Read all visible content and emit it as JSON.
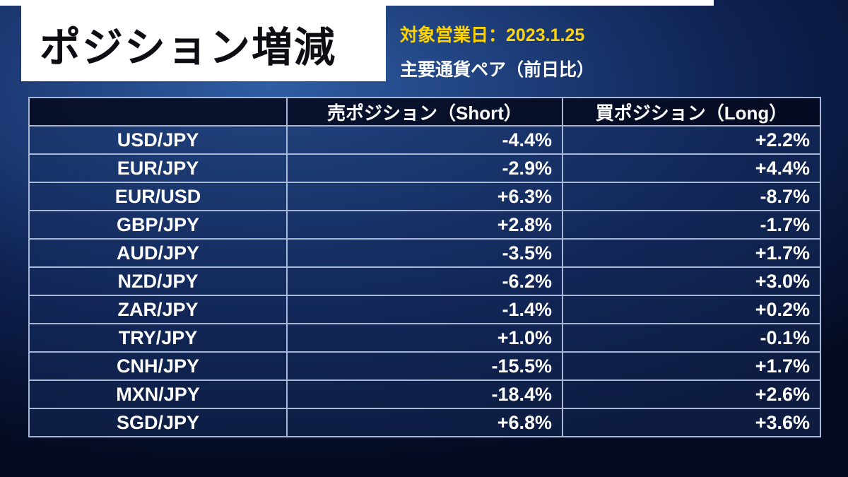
{
  "page": {
    "title": "ポジション増減",
    "date_label": "対象営業日：2023.1.25",
    "subtitle": "主要通貨ペア（前日比）"
  },
  "colors": {
    "accent_yellow": "#ffd400",
    "background_navy": "#0e2150",
    "row_fill": "#162e5f",
    "header_row_fill": "#04091e",
    "table_border": "#a9b7d6",
    "title_panel": "#ffffff",
    "title_text": "#0d0d14"
  },
  "chart_data": {
    "type": "table",
    "title": "ポジション増減",
    "subtitle": "主要通貨ペア（前日比）",
    "date": "2023.1.25",
    "columns": [
      "",
      "売ポジション（Short）",
      "買ポジション（Long）"
    ],
    "rows": [
      {
        "pair": "USD/JPY",
        "short": "-4.4%",
        "long": "+2.2%"
      },
      {
        "pair": "EUR/JPY",
        "short": "-2.9%",
        "long": "+4.4%"
      },
      {
        "pair": "EUR/USD",
        "short": "+6.3%",
        "long": "-8.7%"
      },
      {
        "pair": "GBP/JPY",
        "short": "+2.8%",
        "long": "-1.7%"
      },
      {
        "pair": "AUD/JPY",
        "short": "-3.5%",
        "long": "+1.7%"
      },
      {
        "pair": "NZD/JPY",
        "short": "-6.2%",
        "long": "+3.0%"
      },
      {
        "pair": "ZAR/JPY",
        "short": "-1.4%",
        "long": "+0.2%"
      },
      {
        "pair": "TRY/JPY",
        "short": "+1.0%",
        "long": "-0.1%"
      },
      {
        "pair": "CNH/JPY",
        "short": "-15.5%",
        "long": "+1.7%"
      },
      {
        "pair": "MXN/JPY",
        "short": "-18.4%",
        "long": "+2.6%"
      },
      {
        "pair": "SGD/JPY",
        "short": "+6.8%",
        "long": "+3.6%"
      }
    ]
  }
}
